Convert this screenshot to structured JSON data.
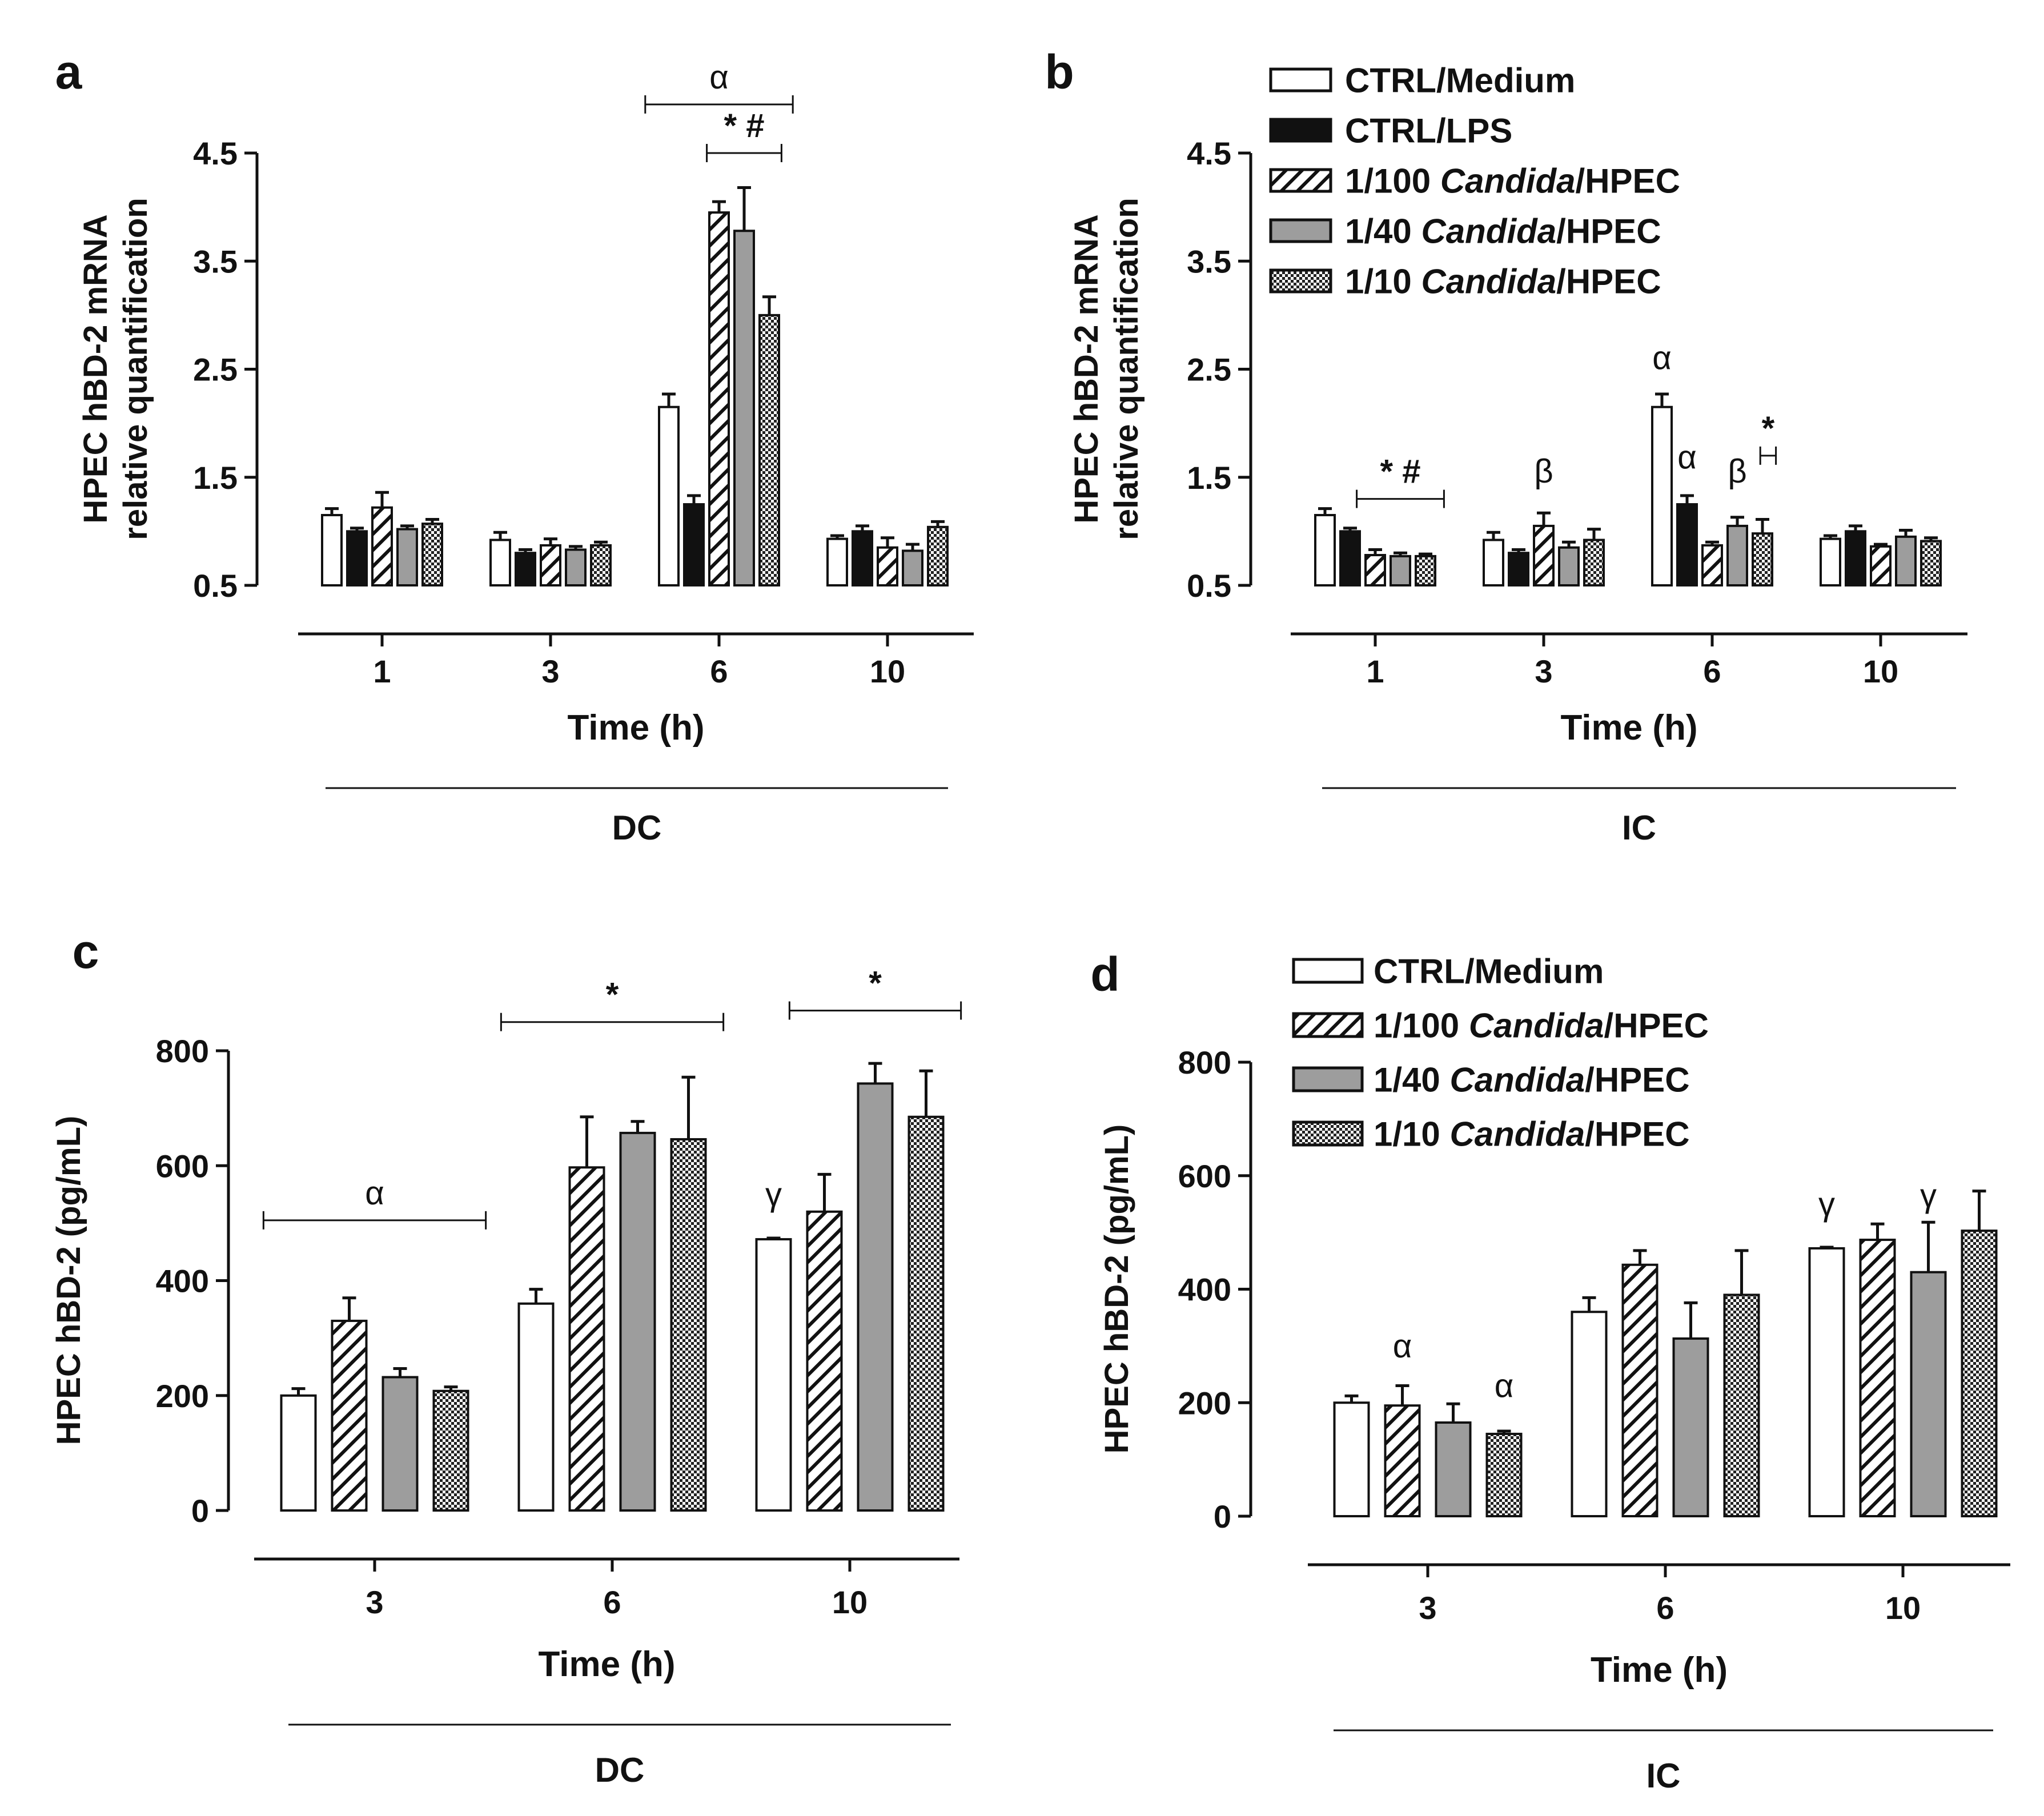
{
  "legend_styles": [
    {
      "key": "medium",
      "style": "white"
    },
    {
      "key": "lps",
      "style": "black"
    },
    {
      "key": "c100",
      "style": "hatch"
    },
    {
      "key": "c40",
      "style": "gray"
    },
    {
      "key": "c10",
      "style": "check"
    }
  ],
  "colors": {
    "black": "#111111",
    "gray": "#9d9d9d",
    "white": "#ffffff"
  },
  "chart_data": [
    {
      "panel": "a",
      "type": "bar",
      "ylabel": [
        "HPEC hBD-2 mRNA",
        "relative quantification"
      ],
      "yticks": [
        "0.5",
        "1.5",
        "2.5",
        "3.5",
        "4.5"
      ],
      "ylim": [
        0.5,
        4.5
      ],
      "xlabel": "Time (h)",
      "group_label": "DC",
      "categories": [
        "1",
        "3",
        "6",
        "10"
      ],
      "series": [
        {
          "name": "CTRL/Medium",
          "style": "white",
          "values": [
            1.15,
            0.92,
            2.15,
            0.93
          ],
          "errors": [
            0.06,
            0.07,
            0.12,
            0.03
          ]
        },
        {
          "name": "CTRL/LPS",
          "style": "black",
          "values": [
            1.0,
            0.8,
            1.25,
            1.0
          ],
          "errors": [
            0.03,
            0.03,
            0.08,
            0.05
          ]
        },
        {
          "name": "1/100 Candida/HPEC",
          "style": "hatch",
          "values": [
            1.22,
            0.87,
            3.95,
            0.85
          ],
          "errors": [
            0.14,
            0.06,
            0.1,
            0.09
          ]
        },
        {
          "name": "1/40 Candida/HPEC",
          "style": "gray",
          "values": [
            1.02,
            0.83,
            3.78,
            0.82
          ],
          "errors": [
            0.03,
            0.03,
            0.4,
            0.06
          ]
        },
        {
          "name": "1/10 Candida/HPEC",
          "style": "check",
          "values": [
            1.07,
            0.87,
            3.0,
            1.04
          ],
          "errors": [
            0.04,
            0.03,
            0.17,
            0.05
          ]
        }
      ],
      "annotations": [
        {
          "type": "bracket",
          "cat_from": 2,
          "series_from": 0,
          "cat_to": 2,
          "series_to": 4,
          "extend": 0.55,
          "y": 4.95,
          "text": "α",
          "text_class": "sig"
        },
        {
          "type": "bracket",
          "cat_from": 2,
          "series_from": 2,
          "cat_to": 2,
          "series_to": 4,
          "extend": 0.1,
          "y": 4.5,
          "text": "* #",
          "text_class": "lbl"
        }
      ]
    },
    {
      "panel": "b",
      "type": "bar",
      "ylabel": [
        "HPEC hBD-2 mRNA",
        "relative quantification"
      ],
      "yticks": [
        "0.5",
        "1.5",
        "2.5",
        "3.5",
        "4.5"
      ],
      "ylim": [
        0.5,
        4.5
      ],
      "xlabel": "Time (h)",
      "group_label": "IC",
      "categories": [
        "1",
        "3",
        "6",
        "10"
      ],
      "series": [
        {
          "name": "CTRL/Medium",
          "style": "white",
          "values": [
            1.15,
            0.92,
            2.15,
            0.93
          ],
          "errors": [
            0.06,
            0.07,
            0.12,
            0.03
          ]
        },
        {
          "name": "CTRL/LPS",
          "style": "black",
          "values": [
            1.0,
            0.8,
            1.25,
            1.0
          ],
          "errors": [
            0.03,
            0.03,
            0.08,
            0.05
          ]
        },
        {
          "name": "1/100 Candida/HPEC",
          "style": "hatch",
          "values": [
            0.78,
            1.05,
            0.87,
            0.86
          ],
          "errors": [
            0.05,
            0.12,
            0.03,
            0.02
          ]
        },
        {
          "name": "1/40 Candida/HPEC",
          "style": "gray",
          "values": [
            0.77,
            0.85,
            1.05,
            0.95
          ],
          "errors": [
            0.03,
            0.05,
            0.08,
            0.06
          ]
        },
        {
          "name": "1/10 Candida/HPEC",
          "style": "check",
          "values": [
            0.77,
            0.92,
            0.98,
            0.91
          ],
          "errors": [
            0.02,
            0.1,
            0.13,
            0.03
          ]
        }
      ],
      "annotations": [
        {
          "type": "bracket",
          "cat_from": 0,
          "series_from": 2,
          "cat_to": 0,
          "series_to": 4,
          "extend": 0.35,
          "y": 1.3,
          "text": "* #",
          "text_class": "lbl"
        },
        {
          "type": "bracket",
          "cat_from": 2,
          "series_from": 4,
          "cat_to": 2,
          "series_to": 4,
          "extend": 0.15,
          "ext_left": -0.3,
          "y": 1.7,
          "text": "*",
          "text_class": "lbl"
        },
        {
          "type": "text",
          "cat": 1,
          "series": 2,
          "y": 1.45,
          "text": "β"
        },
        {
          "type": "text",
          "cat": 2,
          "series": 0,
          "y": 2.5,
          "text": "α"
        },
        {
          "type": "text",
          "cat": 2,
          "series": 1,
          "y": 1.58,
          "text": "α"
        },
        {
          "type": "text",
          "cat": 2,
          "series": 3,
          "y": 1.45,
          "text": "β"
        }
      ],
      "legend": {
        "entries": [
          "CTRL/Medium",
          "CTRL/LPS",
          "1/100 Candida/HPEC",
          "1/40 Candida/HPEC",
          "1/10 Candida/HPEC"
        ],
        "italic_word": "Candida",
        "position": "top-right"
      }
    },
    {
      "panel": "c",
      "type": "bar",
      "ylabel": [
        "HPEC hBD-2 (pg/mL)"
      ],
      "yticks": [
        "0",
        "200",
        "400",
        "600",
        "800"
      ],
      "ylim": [
        0,
        800
      ],
      "xlabel": "Time (h)",
      "group_label": "DC",
      "categories": [
        "3",
        "6",
        "10"
      ],
      "series": [
        {
          "name": "CTRL/Medium",
          "style": "white",
          "values": [
            200,
            360,
            472
          ],
          "errors": [
            12,
            25,
            2
          ]
        },
        {
          "name": "1/100 Candida/HPEC",
          "style": "hatch",
          "values": [
            330,
            597,
            520
          ],
          "errors": [
            40,
            88,
            65
          ]
        },
        {
          "name": "1/40 Candida/HPEC",
          "style": "gray",
          "values": [
            232,
            657,
            743
          ],
          "errors": [
            15,
            20,
            35
          ]
        },
        {
          "name": "1/10 Candida/HPEC",
          "style": "check",
          "values": [
            208,
            646,
            685
          ],
          "errors": [
            7,
            108,
            80
          ]
        }
      ],
      "annotations": [
        {
          "type": "bracket",
          "cat_from": 0,
          "series_from": 0,
          "cat_to": 0,
          "series_to": 3,
          "extend": 0.35,
          "y": 505,
          "text": "α",
          "text_class": "sig"
        },
        {
          "type": "bracket",
          "cat_from": 1,
          "series_from": 0,
          "cat_to": 1,
          "series_to": 3,
          "extend": 0.35,
          "y": 850,
          "text": "*",
          "text_class": "lbl"
        },
        {
          "type": "bracket",
          "cat_from": 2,
          "series_from": 1,
          "cat_to": 2,
          "series_to": 3,
          "extend": 0.35,
          "y": 870,
          "text": "*",
          "text_class": "lbl"
        },
        {
          "type": "text",
          "cat": 2,
          "series": 0,
          "y": 530,
          "text": "γ"
        }
      ]
    },
    {
      "panel": "d",
      "type": "bar",
      "ylabel": [
        "HPEC hBD-2 (pg/mL)"
      ],
      "yticks": [
        "0",
        "200",
        "400",
        "600",
        "800"
      ],
      "ylim": [
        0,
        800
      ],
      "xlabel": "Time (h)",
      "group_label": "IC",
      "categories": [
        "3",
        "6",
        "10"
      ],
      "series": [
        {
          "name": "CTRL/Medium",
          "style": "white",
          "values": [
            200,
            360,
            472
          ],
          "errors": [
            12,
            25,
            2
          ]
        },
        {
          "name": "1/100 Candida/HPEC",
          "style": "hatch",
          "values": [
            195,
            443,
            487
          ],
          "errors": [
            35,
            25,
            28
          ]
        },
        {
          "name": "1/40 Candida/HPEC",
          "style": "gray",
          "values": [
            165,
            313,
            430
          ],
          "errors": [
            33,
            63,
            88
          ]
        },
        {
          "name": "1/10 Candida/HPEC",
          "style": "check",
          "values": [
            145,
            390,
            503
          ],
          "errors": [
            5,
            78,
            70
          ]
        }
      ],
      "annotations": [
        {
          "type": "text",
          "cat": 0,
          "series": 1,
          "y": 280,
          "text": "α"
        },
        {
          "type": "text",
          "cat": 0,
          "series": 3,
          "y": 210,
          "text": "α"
        },
        {
          "type": "text",
          "cat": 2,
          "series": 0,
          "y": 530,
          "text": "γ"
        },
        {
          "type": "text",
          "cat": 2,
          "series": 2,
          "y": 545,
          "text": "γ"
        }
      ],
      "legend": {
        "entries": [
          "CTRL/Medium",
          "1/100 Candida/HPEC",
          "1/40 Candida/HPEC",
          "1/10 Candida/HPEC"
        ],
        "italic_word": "Candida",
        "position": "top-left"
      }
    }
  ]
}
